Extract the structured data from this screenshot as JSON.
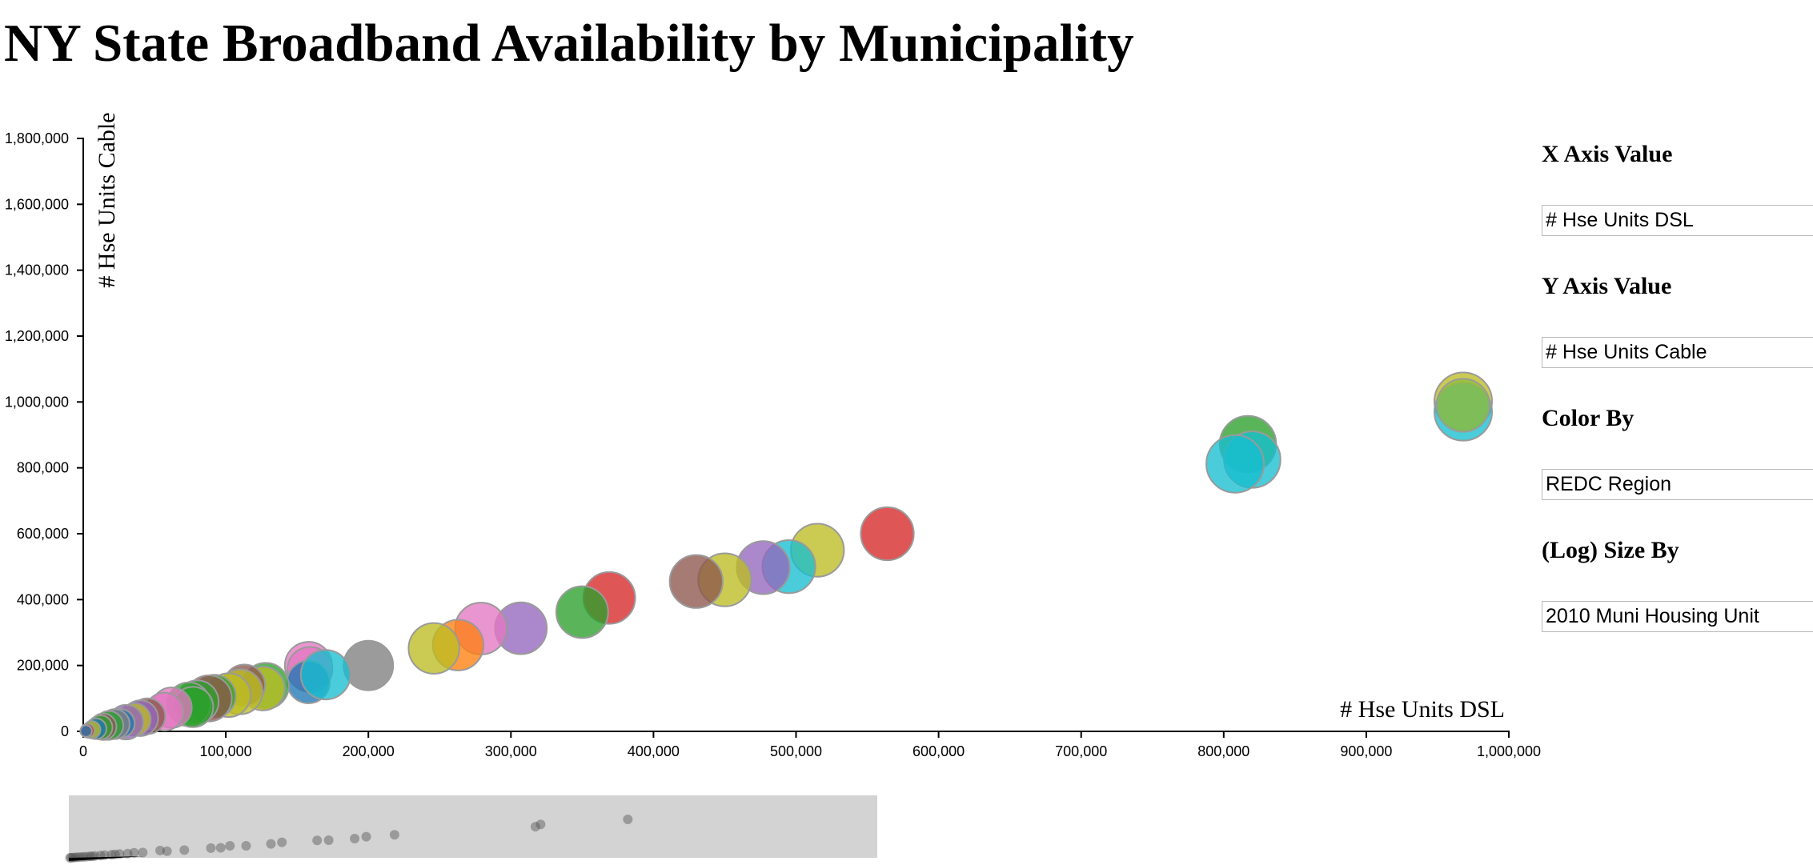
{
  "page": {
    "title": "NY State Broadband Availability by Municipality"
  },
  "controls": {
    "x_axis": {
      "label": "X Axis Value",
      "value": "# Hse Units DSL"
    },
    "y_axis": {
      "label": "Y Axis Value",
      "value": "# Hse Units Cable"
    },
    "color_by": {
      "label": "Color By",
      "value": "REDC Region"
    },
    "size_by": {
      "label": "(Log) Size By",
      "value": "2010 Muni Housing Unit"
    }
  },
  "chart_data": {
    "type": "scatter",
    "xlabel": "# Hse Units DSL",
    "ylabel": "# Hse Units Cable",
    "xlim": [
      0,
      1000000
    ],
    "ylim": [
      0,
      1800000
    ],
    "x_ticks": [
      0,
      100000,
      200000,
      300000,
      400000,
      500000,
      600000,
      700000,
      800000,
      900000,
      1000000
    ],
    "x_tick_labels": [
      "0",
      "100,000",
      "200,000",
      "300,000",
      "400,000",
      "500,000",
      "600,000",
      "700,000",
      "800,000",
      "900,000",
      "1,000,000"
    ],
    "y_ticks": [
      0,
      200000,
      400000,
      600000,
      800000,
      1000000,
      1200000,
      1400000,
      1600000,
      1800000
    ],
    "y_tick_labels": [
      "0",
      "200,000",
      "400,000",
      "600,000",
      "800,000",
      "1,000,000",
      "1,200,000",
      "1,400,000",
      "1,600,000",
      "1,800,000"
    ],
    "point_size_encoding": "log(2010 Muni Housing Unit)",
    "grid": false,
    "points": [
      {
        "x": 968000,
        "y": 1002000,
        "r": 1.0,
        "color": "#bcbd22"
      },
      {
        "x": 968000,
        "y": 970000,
        "r": 1.0,
        "color": "#17becf"
      },
      {
        "x": 968000,
        "y": 990000,
        "r": 0.92,
        "color": "#8fbc3c"
      },
      {
        "x": 817000,
        "y": 872000,
        "r": 0.98,
        "color": "#2ca02c"
      },
      {
        "x": 820000,
        "y": 825000,
        "r": 0.98,
        "color": "#17becf"
      },
      {
        "x": 808000,
        "y": 812000,
        "r": 1.0,
        "color": "#17becf"
      },
      {
        "x": 564000,
        "y": 600000,
        "r": 0.92,
        "color": "#d62728"
      },
      {
        "x": 515000,
        "y": 550000,
        "r": 0.92,
        "color": "#bcbd22"
      },
      {
        "x": 495000,
        "y": 500000,
        "r": 0.92,
        "color": "#17becf"
      },
      {
        "x": 477000,
        "y": 497000,
        "r": 0.92,
        "color": "#9467bd"
      },
      {
        "x": 450000,
        "y": 460000,
        "r": 0.92,
        "color": "#bcbd22"
      },
      {
        "x": 430000,
        "y": 455000,
        "r": 0.92,
        "color": "#8c564b"
      },
      {
        "x": 369000,
        "y": 405000,
        "r": 0.9,
        "color": "#d62728"
      },
      {
        "x": 350000,
        "y": 362000,
        "r": 0.9,
        "color": "#2ca02c"
      },
      {
        "x": 307000,
        "y": 313000,
        "r": 0.9,
        "color": "#9467bd"
      },
      {
        "x": 279000,
        "y": 312000,
        "r": 0.9,
        "color": "#e377c2"
      },
      {
        "x": 263000,
        "y": 262000,
        "r": 0.88,
        "color": "#ff7f0e"
      },
      {
        "x": 246000,
        "y": 252000,
        "r": 0.88,
        "color": "#bcbd22"
      },
      {
        "x": 200000,
        "y": 200000,
        "r": 0.86,
        "color": "#7f7f7f"
      },
      {
        "x": 158000,
        "y": 200000,
        "r": 0.82,
        "color": "#e377c2"
      },
      {
        "x": 159000,
        "y": 188000,
        "r": 0.78,
        "color": "#e377c2"
      },
      {
        "x": 158000,
        "y": 150000,
        "r": 0.74,
        "color": "#1f77b4"
      },
      {
        "x": 170000,
        "y": 172000,
        "r": 0.86,
        "color": "#17becf"
      },
      {
        "x": 128000,
        "y": 138000,
        "r": 0.8,
        "color": "#2ca02c"
      },
      {
        "x": 126000,
        "y": 130000,
        "r": 0.76,
        "color": "#bcbd22"
      },
      {
        "x": 113000,
        "y": 140000,
        "r": 0.72,
        "color": "#8c564b"
      },
      {
        "x": 110000,
        "y": 120000,
        "r": 0.78,
        "color": "#bcbd22"
      },
      {
        "x": 102000,
        "y": 110000,
        "r": 0.76,
        "color": "#bcbd22"
      },
      {
        "x": 92000,
        "y": 107000,
        "r": 0.74,
        "color": "#2ca02c"
      },
      {
        "x": 88000,
        "y": 100000,
        "r": 0.8,
        "color": "#8c564b"
      },
      {
        "x": 80000,
        "y": 90000,
        "r": 0.74,
        "color": "#2ca02c"
      },
      {
        "x": 74000,
        "y": 82000,
        "r": 0.76,
        "color": "#2ca02c"
      },
      {
        "x": 77000,
        "y": 74000,
        "r": 0.7,
        "color": "#2ca02c"
      },
      {
        "x": 62000,
        "y": 72000,
        "r": 0.7,
        "color": "#e377c2"
      },
      {
        "x": 57000,
        "y": 60000,
        "r": 0.66,
        "color": "#e377c2"
      },
      {
        "x": 45000,
        "y": 46000,
        "r": 0.62,
        "color": "#8c564b"
      },
      {
        "x": 40000,
        "y": 40000,
        "r": 0.62,
        "color": "#9467bd"
      },
      {
        "x": 36000,
        "y": 36000,
        "r": 0.56,
        "color": "#bcbd22"
      },
      {
        "x": 30000,
        "y": 28000,
        "r": 0.6,
        "color": "#9467bd"
      },
      {
        "x": 26000,
        "y": 24000,
        "r": 0.5,
        "color": "#1f77b4"
      },
      {
        "x": 22000,
        "y": 22000,
        "r": 0.52,
        "color": "#7f7f7f"
      },
      {
        "x": 18000,
        "y": 18000,
        "r": 0.5,
        "color": "#2ca02c"
      },
      {
        "x": 14000,
        "y": 14000,
        "r": 0.46,
        "color": "#8c564b"
      },
      {
        "x": 12000,
        "y": 12000,
        "r": 0.42,
        "color": "#2ca02c"
      },
      {
        "x": 9000,
        "y": 8000,
        "r": 0.36,
        "color": "#1f77b4"
      },
      {
        "x": 6000,
        "y": 5000,
        "r": 0.3,
        "color": "#bcbd22"
      },
      {
        "x": 3000,
        "y": 2000,
        "r": 0.24,
        "color": "#d62728"
      },
      {
        "x": 2000,
        "y": 1000,
        "r": 0.2,
        "color": "#1f77b4"
      }
    ]
  },
  "brush_data": {
    "background": "#d3d3d3",
    "points": [
      {
        "x": 968000,
        "y": 1002000
      },
      {
        "x": 817000,
        "y": 872000
      },
      {
        "x": 808000,
        "y": 812000
      },
      {
        "x": 564000,
        "y": 600000
      },
      {
        "x": 515000,
        "y": 550000
      },
      {
        "x": 495000,
        "y": 500000
      },
      {
        "x": 450000,
        "y": 460000
      },
      {
        "x": 430000,
        "y": 455000
      },
      {
        "x": 369000,
        "y": 405000
      },
      {
        "x": 350000,
        "y": 362000
      },
      {
        "x": 307000,
        "y": 313000
      },
      {
        "x": 279000,
        "y": 312000
      },
      {
        "x": 263000,
        "y": 262000
      },
      {
        "x": 246000,
        "y": 252000
      },
      {
        "x": 200000,
        "y": 200000
      },
      {
        "x": 170000,
        "y": 172000
      },
      {
        "x": 158000,
        "y": 190000
      },
      {
        "x": 128000,
        "y": 138000
      },
      {
        "x": 113000,
        "y": 130000
      },
      {
        "x": 102000,
        "y": 110000
      },
      {
        "x": 88000,
        "y": 100000
      },
      {
        "x": 80000,
        "y": 90000
      },
      {
        "x": 74000,
        "y": 80000
      },
      {
        "x": 62000,
        "y": 70000
      },
      {
        "x": 55000,
        "y": 60000
      },
      {
        "x": 45000,
        "y": 46000
      },
      {
        "x": 40000,
        "y": 40000
      },
      {
        "x": 36000,
        "y": 36000
      },
      {
        "x": 30000,
        "y": 28000
      },
      {
        "x": 25000,
        "y": 24000
      },
      {
        "x": 20000,
        "y": 20000
      },
      {
        "x": 15000,
        "y": 15000
      },
      {
        "x": 11000,
        "y": 10000
      },
      {
        "x": 7000,
        "y": 6000
      },
      {
        "x": 4000,
        "y": 3000
      },
      {
        "x": 2000,
        "y": 1000
      }
    ]
  }
}
